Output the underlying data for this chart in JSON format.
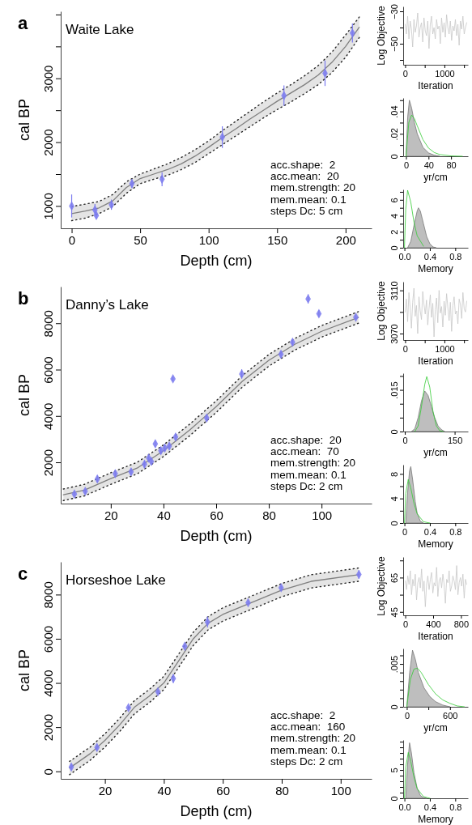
{
  "chart_data": [
    {
      "type": "line",
      "title": "Waite Lake",
      "xlabel": "Depth (cm)",
      "ylabel": "cal BP",
      "xlim": [
        -8,
        219
      ],
      "xticks": [
        0,
        50,
        100,
        150,
        200
      ],
      "ylim": [
        650,
        4050
      ],
      "yticks": [
        1000,
        {
          "value": 1500,
          "label": null
        },
        2000,
        {
          "value": 2500,
          "label": null
        },
        3000,
        {
          "value": 3500,
          "label": null
        },
        {
          "value": 4000,
          "label": null
        }
      ],
      "annotations": [
        "a",
        "acc.shape:  2",
        "acc.mean:  20",
        "mem.strength: 20",
        "mem.mean: 0.1",
        "steps Dc: 5 cm"
      ],
      "series": [
        {
          "color": "#7f7f7f",
          "x": [
            0,
            10,
            20,
            30,
            40,
            50,
            60,
            70,
            80,
            90,
            100,
            110,
            120,
            130,
            140,
            150,
            160,
            170,
            180,
            190,
            200,
            210
          ],
          "values": [
            880,
            920,
            970,
            1080,
            1290,
            1430,
            1500,
            1570,
            1660,
            1780,
            1920,
            2070,
            2210,
            2360,
            2500,
            2640,
            2770,
            2900,
            3050,
            3250,
            3500,
            3800
          ],
          "lower": [
            770,
            810,
            880,
            990,
            1200,
            1350,
            1420,
            1480,
            1570,
            1680,
            1820,
            1960,
            2100,
            2240,
            2380,
            2510,
            2630,
            2760,
            2900,
            3090,
            3330,
            3640
          ],
          "upper": [
            990,
            1030,
            1070,
            1180,
            1380,
            1500,
            1580,
            1660,
            1760,
            1880,
            2020,
            2180,
            2330,
            2480,
            2630,
            2770,
            2900,
            3040,
            3200,
            3410,
            3680,
            3960
          ]
        },
        {
          "color": "#222222",
          "line_style": "dotted",
          "x": [
            0,
            10,
            20,
            30,
            40,
            50,
            60,
            70,
            80,
            90,
            100,
            110,
            120,
            130,
            140,
            150,
            160,
            170,
            180,
            190,
            200,
            210
          ],
          "values": [
            770,
            810,
            880,
            990,
            1200,
            1350,
            1420,
            1480,
            1570,
            1680,
            1820,
            1960,
            2100,
            2240,
            2380,
            2510,
            2630,
            2760,
            2900,
            3090,
            3330,
            3640
          ]
        },
        {
          "color": "#222222",
          "line_style": "dotted",
          "x": [
            0,
            10,
            20,
            30,
            40,
            50,
            60,
            70,
            80,
            90,
            100,
            110,
            120,
            130,
            140,
            150,
            160,
            170,
            180,
            190,
            200,
            210
          ],
          "values": [
            990,
            1030,
            1070,
            1180,
            1380,
            1500,
            1580,
            1660,
            1760,
            1880,
            2020,
            2180,
            2330,
            2480,
            2630,
            2770,
            2900,
            3040,
            3200,
            3410,
            3680,
            3960
          ]
        },
        {
          "type": "scatter",
          "marker": "diamond",
          "color": "#7b7bef",
          "x": [
            0,
            17,
            18,
            29,
            44,
            66,
            110,
            155,
            185,
            205
          ],
          "values": [
            1000,
            940,
            850,
            1020,
            1350,
            1420,
            2080,
            2730,
            3080,
            3710
          ],
          "errors": [
            180,
            90,
            50,
            80,
            70,
            110,
            170,
            160,
            200,
            150
          ]
        }
      ]
    },
    {
      "type": "line",
      "xlabel": "Iteration",
      "ylabel": "Log Objective",
      "xlim": [
        -50,
        1600
      ],
      "xticks": [
        0,
        {
          "value": 500,
          "label": null
        },
        1000,
        {
          "value": 1500,
          "label": null
        }
      ],
      "ylim": [
        -63,
        -27
      ],
      "yticks": [
        {
          "value": -30,
          "label": "−30"
        },
        {
          "value": -40,
          "label": null
        },
        {
          "value": -50,
          "label": "−50"
        },
        {
          "value": -60,
          "label": null
        }
      ],
      "series": [
        {
          "color": "#c8c8c8",
          "x": [
            0,
            32,
            64,
            96,
            128,
            160,
            192,
            224,
            256,
            288,
            320,
            352,
            384,
            416,
            448,
            480,
            512,
            544,
            576,
            608,
            640,
            672,
            704,
            736,
            768,
            800,
            832,
            864,
            896,
            928,
            960,
            992,
            1024,
            1056,
            1088,
            1120,
            1152,
            1184,
            1216,
            1248,
            1280,
            1312,
            1344,
            1376,
            1408,
            1440,
            1472,
            1504,
            1536,
            1568
          ],
          "values": [
            -38,
            -44,
            -33,
            -47,
            -36,
            -41,
            -52,
            -35,
            -43,
            -39,
            -31,
            -46,
            -40,
            -37,
            -49,
            -34,
            -42,
            -45,
            -36,
            -53,
            -38,
            -33,
            -44,
            -40,
            -47,
            -35,
            -41,
            -39,
            -50,
            -34,
            -43,
            -37,
            -46,
            -32,
            -40,
            -44,
            -36,
            -48,
            -39,
            -42,
            -35,
            -45,
            -38,
            -51,
            -36,
            -41,
            -33,
            -44,
            -40,
            -37
          ]
        }
      ]
    },
    {
      "type": "area",
      "xlabel": "yr/cm",
      "xlim": [
        -5,
        110
      ],
      "xticks": [
        0,
        40,
        80
      ],
      "ylim": [
        0,
        0.052
      ],
      "yticks": [
        0,
        {
          "value": 0.01,
          "label": null
        },
        {
          "value": 0.02,
          "label": ".02"
        },
        {
          "value": 0.03,
          "label": null
        },
        {
          "value": 0.04,
          "label": ".04"
        },
        {
          "value": 0.05,
          "label": null
        }
      ],
      "series": [
        {
          "color": "#bebebe",
          "x": [
            0,
            3,
            6,
            10,
            15,
            20,
            30,
            40,
            50,
            60
          ],
          "values": [
            0,
            0.035,
            0.05,
            0.043,
            0.03,
            0.02,
            0.008,
            0.003,
            0.001,
            0
          ]
        },
        {
          "type": "line",
          "color": "#33cc33",
          "x": [
            0,
            5,
            10,
            15,
            20,
            30,
            40,
            50,
            60,
            80,
            100
          ],
          "values": [
            0,
            0.0303,
            0.0368,
            0.0335,
            0.0271,
            0.0149,
            0.0073,
            0.0034,
            0.0015,
            0.0003,
            0
          ]
        }
      ]
    },
    {
      "type": "area",
      "xlabel": "Memory",
      "xlim": [
        -0.02,
        1
      ],
      "xticks": [
        {
          "value": 0,
          "label": "0.0"
        },
        0.4,
        0.8
      ],
      "ylim": [
        0,
        7.3
      ],
      "yticks": [
        0,
        {
          "value": 1,
          "label": null
        },
        2,
        {
          "value": 3,
          "label": null
        },
        4,
        {
          "value": 5,
          "label": null
        },
        6,
        {
          "value": 7,
          "label": null
        }
      ],
      "series": [
        {
          "color": "#bebebe",
          "x": [
            0.05,
            0.1,
            0.15,
            0.2,
            0.22,
            0.25,
            0.3,
            0.35,
            0.4,
            0.45,
            0.5
          ],
          "values": [
            0,
            0.8,
            2.8,
            4.6,
            5,
            4.6,
            3,
            1.4,
            0.5,
            0.1,
            0
          ]
        },
        {
          "type": "line",
          "color": "#33cc33",
          "x": [
            0,
            0.02,
            0.05,
            0.1,
            0.15,
            0.2,
            0.3
          ],
          "values": [
            0,
            4.8,
            7.2,
            5.7,
            3.2,
            1.5,
            0.2
          ]
        }
      ]
    },
    {
      "type": "line",
      "title": "Danny’s Lake",
      "xlabel": "Depth (cm)",
      "ylabel": "cal BP",
      "xlim": [
        1,
        119
      ],
      "xticks": [
        20,
        40,
        60,
        80,
        100
      ],
      "ylim": [
        220,
        9580
      ],
      "yticks": [
        2000,
        4000,
        6000,
        8000
      ],
      "annotations": [
        "b",
        "acc.shape:  20",
        "acc.mean:  70",
        "mem.strength: 20",
        "mem.mean: 0.1",
        "steps Dc: 2 cm"
      ],
      "series": [
        {
          "color": "#7f7f7f",
          "x": [
            2,
            10,
            20,
            30,
            40,
            50,
            60,
            70,
            80,
            90,
            100,
            114
          ],
          "values": [
            600,
            800,
            1300,
            1750,
            2500,
            3400,
            4400,
            5500,
            6400,
            7100,
            7650,
            8250
          ],
          "lower": [
            350,
            550,
            1050,
            1500,
            2250,
            3150,
            4150,
            5250,
            6150,
            6850,
            7400,
            8000
          ],
          "upper": [
            850,
            1050,
            1550,
            2000,
            2750,
            3650,
            4650,
            5750,
            6650,
            7350,
            7900,
            8500
          ]
        },
        {
          "color": "#222222",
          "line_style": "dotted",
          "x": [
            2,
            10,
            20,
            30,
            40,
            50,
            60,
            70,
            80,
            90,
            100,
            114
          ],
          "values": [
            350,
            550,
            1050,
            1500,
            2250,
            3150,
            4150,
            5250,
            6150,
            6850,
            7400,
            8000
          ]
        },
        {
          "color": "#222222",
          "line_style": "dotted",
          "x": [
            2,
            10,
            20,
            30,
            40,
            50,
            60,
            70,
            80,
            90,
            100,
            114
          ],
          "values": [
            850,
            1050,
            1550,
            2000,
            2750,
            3650,
            4650,
            5750,
            6650,
            7350,
            7900,
            8500
          ]
        },
        {
          "type": "scatter",
          "marker": "diamond",
          "color": "#7b7bef",
          "x": [
            6.2,
            10.3,
            14.9,
            21.7,
            27.7,
            32.8,
            34.4,
            35.4,
            36.9,
            39,
            40.5,
            42.2,
            43.6,
            44.6,
            56.4,
            69.7,
            84.6,
            89,
            94.9,
            99,
            113
          ],
          "values": [
            630,
            750,
            1280,
            1510,
            1590,
            1920,
            2180,
            2040,
            2800,
            2500,
            2620,
            2700,
            5600,
            3090,
            3910,
            5810,
            6660,
            7180,
            9050,
            8410,
            8260
          ],
          "errors": [
            100,
            100,
            150,
            150,
            150,
            150,
            150,
            150,
            150,
            150,
            150,
            150,
            100,
            150,
            150,
            200,
            150,
            150,
            200,
            150,
            100
          ]
        }
      ]
    },
    {
      "type": "line",
      "xlabel": "Iteration",
      "ylabel": "Log Objective",
      "xlim": [
        -50,
        1600
      ],
      "xticks": [
        0,
        {
          "value": 500,
          "label": null
        },
        1000,
        {
          "value": 1500,
          "label": null
        }
      ],
      "ylim": [
        3064,
        3118
      ],
      "yticks": [
        3070,
        {
          "value": 3090,
          "label": null
        },
        3110
      ],
      "series": [
        {
          "color": "#c8c8c8",
          "x": [
            0,
            32,
            64,
            96,
            128,
            160,
            192,
            224,
            256,
            288,
            320,
            352,
            384,
            416,
            448,
            480,
            512,
            544,
            576,
            608,
            640,
            672,
            704,
            736,
            768,
            800,
            832,
            864,
            896,
            928,
            960,
            992,
            1024,
            1056,
            1088,
            1120,
            1152,
            1184,
            1216,
            1248,
            1280,
            1312,
            1344,
            1376,
            1408,
            1440,
            1472,
            1504,
            1536,
            1568
          ],
          "values": [
            3090,
            3102,
            3081,
            3108,
            3094,
            3075,
            3099,
            3112,
            3086,
            3096,
            3070,
            3104,
            3091,
            3083,
            3109,
            3097,
            3088,
            3101,
            3078,
            3093,
            3106,
            3085,
            3098,
            3067,
            3092,
            3103,
            3080,
            3110,
            3089,
            3095,
            3076,
            3100,
            3087,
            3107,
            3094,
            3082,
            3099,
            3072,
            3096,
            3104,
            3088,
            3091,
            3079,
            3102,
            3097,
            3084,
            3108,
            3093,
            3090,
            3100
          ]
        }
      ]
    },
    {
      "type": "area",
      "xlabel": "yr/cm",
      "xlim": [
        -5,
        190
      ],
      "xticks": [
        0,
        150
      ],
      "ylim": [
        0,
        0.021
      ],
      "yticks": [
        0,
        {
          "value": 0.005,
          "label": null
        },
        {
          "value": 0.01,
          "label": null
        },
        {
          "value": 0.015,
          "label": ".015"
        },
        {
          "value": 0.02,
          "label": null
        }
      ],
      "series": [
        {
          "color": "#bebebe",
          "x": [
            20,
            30,
            40,
            50,
            60,
            70,
            80,
            90,
            100,
            110,
            120
          ],
          "values": [
            0,
            0.001,
            0.005,
            0.011,
            0.0146,
            0.013,
            0.009,
            0.005,
            0.002,
            0.0007,
            0
          ]
        },
        {
          "type": "line",
          "color": "#33cc33",
          "x": [
            30,
            40,
            50,
            60,
            66,
            75,
            85,
            95,
            105,
            115
          ],
          "values": [
            0,
            0.002,
            0.009,
            0.017,
            0.0198,
            0.016,
            0.007,
            0.002,
            0.0003,
            0
          ]
        }
      ]
    },
    {
      "type": "area",
      "xlabel": "Memory",
      "xlim": [
        -0.02,
        1
      ],
      "xticks": [
        0,
        0.4,
        0.8
      ],
      "ylim": [
        0,
        9.5
      ],
      "yticks": [
        0,
        {
          "value": 2,
          "label": null
        },
        4,
        {
          "value": 6,
          "label": null
        },
        8
      ],
      "series": [
        {
          "color": "#bebebe",
          "x": [
            0.02,
            0.05,
            0.08,
            0.1,
            0.13,
            0.17,
            0.2,
            0.25,
            0.3
          ],
          "values": [
            0,
            5,
            8.5,
            9.2,
            7,
            3.5,
            1.6,
            0.3,
            0
          ]
        },
        {
          "type": "line",
          "color": "#33cc33",
          "x": [
            0,
            0.02,
            0.06,
            0.1,
            0.15,
            0.2,
            0.3,
            0.4
          ],
          "values": [
            0,
            4.8,
            7.1,
            5.7,
            3.2,
            1.5,
            0.2,
            0
          ]
        }
      ]
    },
    {
      "type": "line",
      "title": "Horseshoe Lake",
      "xlabel": "Depth (cm)",
      "ylabel": "cal BP",
      "xlim": [
        5,
        110.5
      ],
      "xticks": [
        20,
        40,
        60,
        80,
        100
      ],
      "ylim": [
        -340,
        9480
      ],
      "yticks": [
        0,
        2000,
        4000,
        6000,
        8000
      ],
      "annotations": [
        "c",
        "acc.shape:  2",
        "acc.mean:  160",
        "mem.strength: 20",
        "mem.mean: 0.1",
        "steps Dc: 2 cm"
      ],
      "series": [
        {
          "color": "#7f7f7f",
          "x": [
            8,
            15,
            20,
            25,
            30,
            35,
            40,
            45,
            50,
            55,
            60,
            70,
            80,
            90,
            106
          ],
          "values": [
            150,
            800,
            1400,
            2100,
            2900,
            3400,
            4000,
            5000,
            6000,
            6700,
            7100,
            7650,
            8200,
            8600,
            8900
          ],
          "lower": [
            -150,
            500,
            1100,
            1800,
            2600,
            3100,
            3700,
            4700,
            5700,
            6400,
            6800,
            7350,
            7900,
            8300,
            8600
          ],
          "upper": [
            450,
            1100,
            1700,
            2400,
            3200,
            3700,
            4300,
            5300,
            6300,
            7000,
            7400,
            7950,
            8500,
            8900,
            9200
          ]
        },
        {
          "color": "#222222",
          "line_style": "dotted",
          "x": [
            8,
            15,
            20,
            25,
            30,
            35,
            40,
            45,
            50,
            55,
            60,
            70,
            80,
            90,
            106
          ],
          "values": [
            -150,
            500,
            1100,
            1800,
            2600,
            3100,
            3700,
            4700,
            5700,
            6400,
            6800,
            7350,
            7900,
            8300,
            8600
          ]
        },
        {
          "color": "#222222",
          "line_style": "dotted",
          "x": [
            8,
            15,
            20,
            25,
            30,
            35,
            40,
            45,
            50,
            55,
            60,
            70,
            80,
            90,
            106
          ],
          "values": [
            450,
            1100,
            1700,
            2400,
            3200,
            3700,
            4300,
            5300,
            6300,
            7000,
            7400,
            7950,
            8500,
            8900,
            9200
          ]
        },
        {
          "type": "scatter",
          "marker": "diamond",
          "color": "#7b7bef",
          "x": [
            8.6,
            17.3,
            28,
            38,
            43.2,
            47.1,
            54.8,
            68.6,
            79.8,
            106.2
          ],
          "values": [
            200,
            1080,
            2880,
            3600,
            4200,
            5660,
            6760,
            7630,
            8310,
            8910
          ],
          "errors": [
            150,
            150,
            80,
            80,
            200,
            80,
            250,
            80,
            80,
            200
          ]
        }
      ]
    },
    {
      "type": "line",
      "xlabel": "Iteration",
      "ylabel": "Log Objective",
      "xlim": [
        -30,
        900
      ],
      "xticks": [
        0,
        400,
        800
      ],
      "ylim": [
        43,
        77
      ],
      "yticks": [
        45,
        {
          "value": 55,
          "label": null
        },
        65,
        {
          "value": 75,
          "label": null
        }
      ],
      "series": [
        {
          "color": "#c8c8c8",
          "x": [
            0,
            18,
            36,
            54,
            72,
            90,
            108,
            126,
            144,
            162,
            180,
            198,
            216,
            234,
            252,
            270,
            288,
            306,
            324,
            342,
            360,
            378,
            396,
            414,
            432,
            450,
            468,
            486,
            504,
            522,
            540,
            558,
            576,
            594,
            612,
            630,
            648,
            666,
            684,
            702,
            720,
            738,
            756,
            774,
            792,
            810,
            828,
            846,
            864,
            882
          ],
          "values": [
            63,
            58,
            66,
            61,
            69,
            55,
            64,
            60,
            67,
            52,
            62,
            65,
            59,
            70,
            57,
            63,
            48,
            61,
            66,
            58,
            64,
            68,
            56,
            62,
            60,
            71,
            54,
            63,
            65,
            59,
            67,
            61,
            50,
            64,
            62,
            69,
            57,
            60,
            66,
            63,
            58,
            72,
            55,
            62,
            65,
            60,
            67,
            53,
            64,
            61
          ]
        }
      ]
    },
    {
      "type": "area",
      "xlabel": "yr/cm",
      "xlim": [
        -50,
        850
      ],
      "xticks": [
        0,
        {
          "value": 300,
          "label": null
        },
        600
      ],
      "ylim": [
        0,
        0.0068
      ],
      "yticks": [
        0,
        {
          "value": 0.001,
          "label": null
        },
        {
          "value": 0.002,
          "label": null
        },
        {
          "value": 0.003,
          "label": null
        },
        {
          "value": 0.004,
          "label": null
        },
        {
          "value": 0.005,
          "label": ".005"
        },
        {
          "value": 0.006,
          "label": null
        }
      ],
      "series": [
        {
          "color": "#bebebe",
          "x": [
            0,
            40,
            80,
            120,
            160,
            240,
            320,
            400,
            500,
            600
          ],
          "values": [
            0,
            0.004,
            0.0066,
            0.0055,
            0.004,
            0.0022,
            0.0012,
            0.0006,
            0.0002,
            0
          ]
        },
        {
          "type": "line",
          "color": "#33cc33",
          "x": [
            0,
            50,
            100,
            150,
            200,
            300,
            400,
            500,
            600,
            700,
            800
          ],
          "values": [
            0,
            0.0032,
            0.0044,
            0.0045,
            0.004,
            0.0026,
            0.0015,
            0.0008,
            0.0004,
            0.0001,
            0
          ]
        }
      ]
    },
    {
      "type": "area",
      "xlabel": "Memory",
      "xlim": [
        -0.02,
        1
      ],
      "xticks": [
        {
          "value": 0,
          "label": "0.0"
        },
        0.4,
        0.8
      ],
      "ylim": [
        0,
        10.3
      ],
      "yticks": [
        0,
        {
          "value": 1,
          "label": null
        },
        {
          "value": 2,
          "label": null
        },
        {
          "value": 3,
          "label": null
        },
        {
          "value": 4,
          "label": null
        },
        5,
        {
          "value": 6,
          "label": null
        },
        {
          "value": 7,
          "label": null
        },
        {
          "value": 8,
          "label": null
        },
        {
          "value": 9,
          "label": null
        },
        {
          "value": 10,
          "label": null
        }
      ],
      "series": [
        {
          "color": "#bebebe",
          "x": [
            0.02,
            0.05,
            0.08,
            0.11,
            0.15,
            0.2,
            0.25,
            0.3,
            0.35
          ],
          "values": [
            0,
            6,
            9.8,
            8,
            4.5,
            1.8,
            0.5,
            0.1,
            0
          ]
        },
        {
          "type": "line",
          "color": "#33cc33",
          "x": [
            0,
            0.02,
            0.06,
            0.1,
            0.15,
            0.2,
            0.3,
            0.4
          ],
          "values": [
            0,
            5.5,
            8.1,
            6.5,
            3.7,
            1.7,
            0.3,
            0
          ]
        }
      ]
    }
  ]
}
